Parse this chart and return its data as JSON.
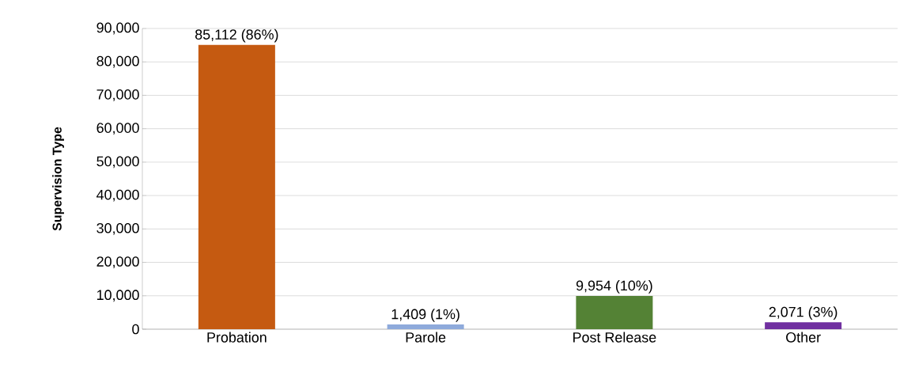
{
  "chart_data": {
    "type": "bar",
    "ylabel": "Supervision Type",
    "categories": [
      "Probation",
      "Parole",
      "Post Release",
      "Other"
    ],
    "values": [
      85112,
      1409,
      9954,
      2071
    ],
    "colors": [
      "#c55a11",
      "#8eaadb",
      "#548235",
      "#7030a0"
    ],
    "value_labels": [
      "85,112 (86%)",
      "1,409 (1%)",
      "9,954 (10%)",
      "2,071 (3%)"
    ],
    "ylim": [
      0,
      90000
    ],
    "yticks": [
      {
        "value": 0,
        "label": "0"
      },
      {
        "value": 10000,
        "label": "10,000"
      },
      {
        "value": 20000,
        "label": "20,000"
      },
      {
        "value": 30000,
        "label": "30,000"
      },
      {
        "value": 40000,
        "label": "40,000"
      },
      {
        "value": 50000,
        "label": "50,000"
      },
      {
        "value": 60000,
        "label": "60,000"
      },
      {
        "value": 70000,
        "label": "70,000"
      },
      {
        "value": 80000,
        "label": "80,000"
      },
      {
        "value": 90000,
        "label": "90,000"
      }
    ],
    "grid": "y"
  }
}
